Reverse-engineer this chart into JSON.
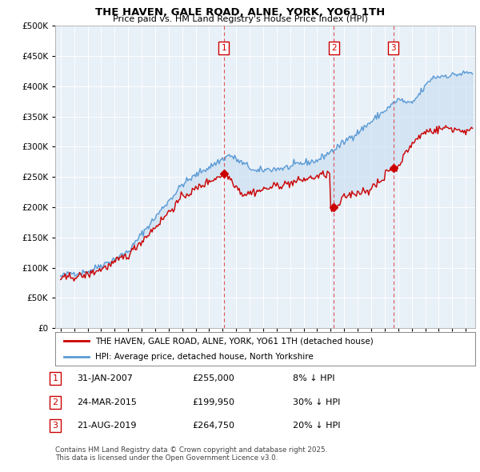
{
  "title": "THE HAVEN, GALE ROAD, ALNE, YORK, YO61 1TH",
  "subtitle": "Price paid vs. HM Land Registry's House Price Index (HPI)",
  "legend_line1": "THE HAVEN, GALE ROAD, ALNE, YORK, YO61 1TH (detached house)",
  "legend_line2": "HPI: Average price, detached house, North Yorkshire",
  "footer": "Contains HM Land Registry data © Crown copyright and database right 2025.\nThis data is licensed under the Open Government Licence v3.0.",
  "transactions": [
    {
      "num": 1,
      "date": "31-JAN-2007",
      "price": "£255,000",
      "hpi": "8% ↓ HPI",
      "year": 2007.08
    },
    {
      "num": 2,
      "date": "24-MAR-2015",
      "price": "£199,950",
      "hpi": "30% ↓ HPI",
      "year": 2015.23
    },
    {
      "num": 3,
      "date": "21-AUG-2019",
      "price": "£264,750",
      "hpi": "20% ↓ HPI",
      "year": 2019.64
    }
  ],
  "transaction_prices": [
    255000,
    199950,
    264750
  ],
  "hpi_color": "#5b9bd5",
  "property_color": "#cc0000",
  "background_color": "#ffffff",
  "plot_bg_color": "#ddeeff",
  "grid_color": "#bbbbcc",
  "ylim": [
    0,
    500000
  ],
  "yticks": [
    0,
    50000,
    100000,
    150000,
    200000,
    250000,
    300000,
    350000,
    400000,
    450000,
    500000
  ],
  "xlim_start": 1994.6,
  "xlim_end": 2025.7,
  "xticks": [
    1995,
    1996,
    1997,
    1998,
    1999,
    2000,
    2001,
    2002,
    2003,
    2004,
    2005,
    2006,
    2007,
    2008,
    2009,
    2010,
    2011,
    2012,
    2013,
    2014,
    2015,
    2016,
    2017,
    2018,
    2019,
    2020,
    2021,
    2022,
    2023,
    2024,
    2025
  ]
}
